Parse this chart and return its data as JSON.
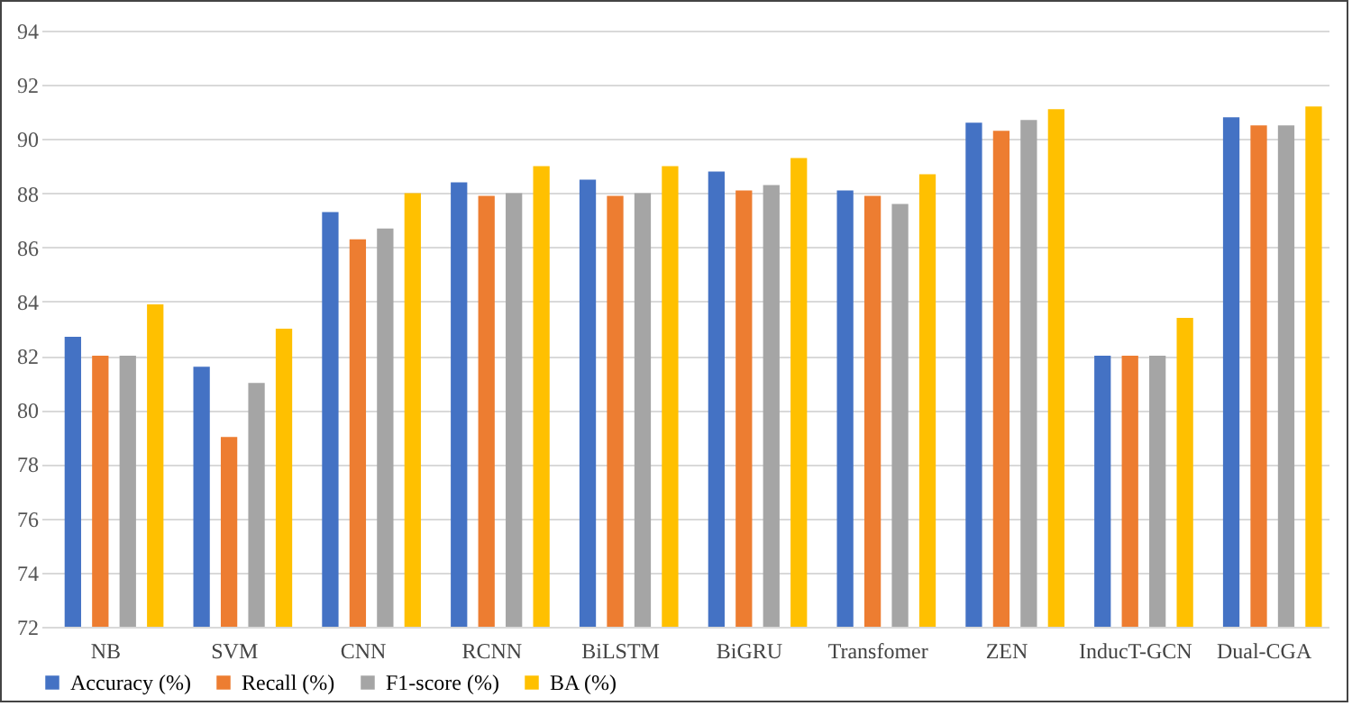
{
  "chart_data": {
    "type": "bar",
    "categories": [
      "NB",
      "SVM",
      "CNN",
      "RCNN",
      "BiLSTM",
      "BiGRU",
      "Transfomer",
      "ZEN",
      "InducT-GCN",
      "Dual-CGA"
    ],
    "series": [
      {
        "name": "Accuracy (%)",
        "color": "#4472c4",
        "values": [
          82.7,
          81.6,
          87.3,
          88.4,
          88.5,
          88.8,
          88.1,
          90.6,
          82,
          90.8
        ]
      },
      {
        "name": "Recall (%)",
        "color": "#ed7d31",
        "values": [
          82,
          79,
          86.3,
          87.9,
          87.9,
          88.1,
          87.9,
          90.3,
          82,
          90.5
        ]
      },
      {
        "name": "F1-score (%)",
        "color": "#a5a5a5",
        "values": [
          82,
          81,
          86.7,
          88,
          88,
          88.3,
          87.6,
          90.7,
          82,
          90.5
        ]
      },
      {
        "name": "BA (%)",
        "color": "#ffc000",
        "values": [
          83.9,
          83,
          88,
          89,
          89,
          89.3,
          88.7,
          91.1,
          83.4,
          91.2
        ]
      }
    ],
    "ylim": [
      72,
      94
    ],
    "yticks": [
      72,
      74,
      76,
      78,
      80,
      82,
      84,
      86,
      88,
      90,
      92,
      94
    ],
    "grid": "y",
    "legend": "bottom"
  }
}
